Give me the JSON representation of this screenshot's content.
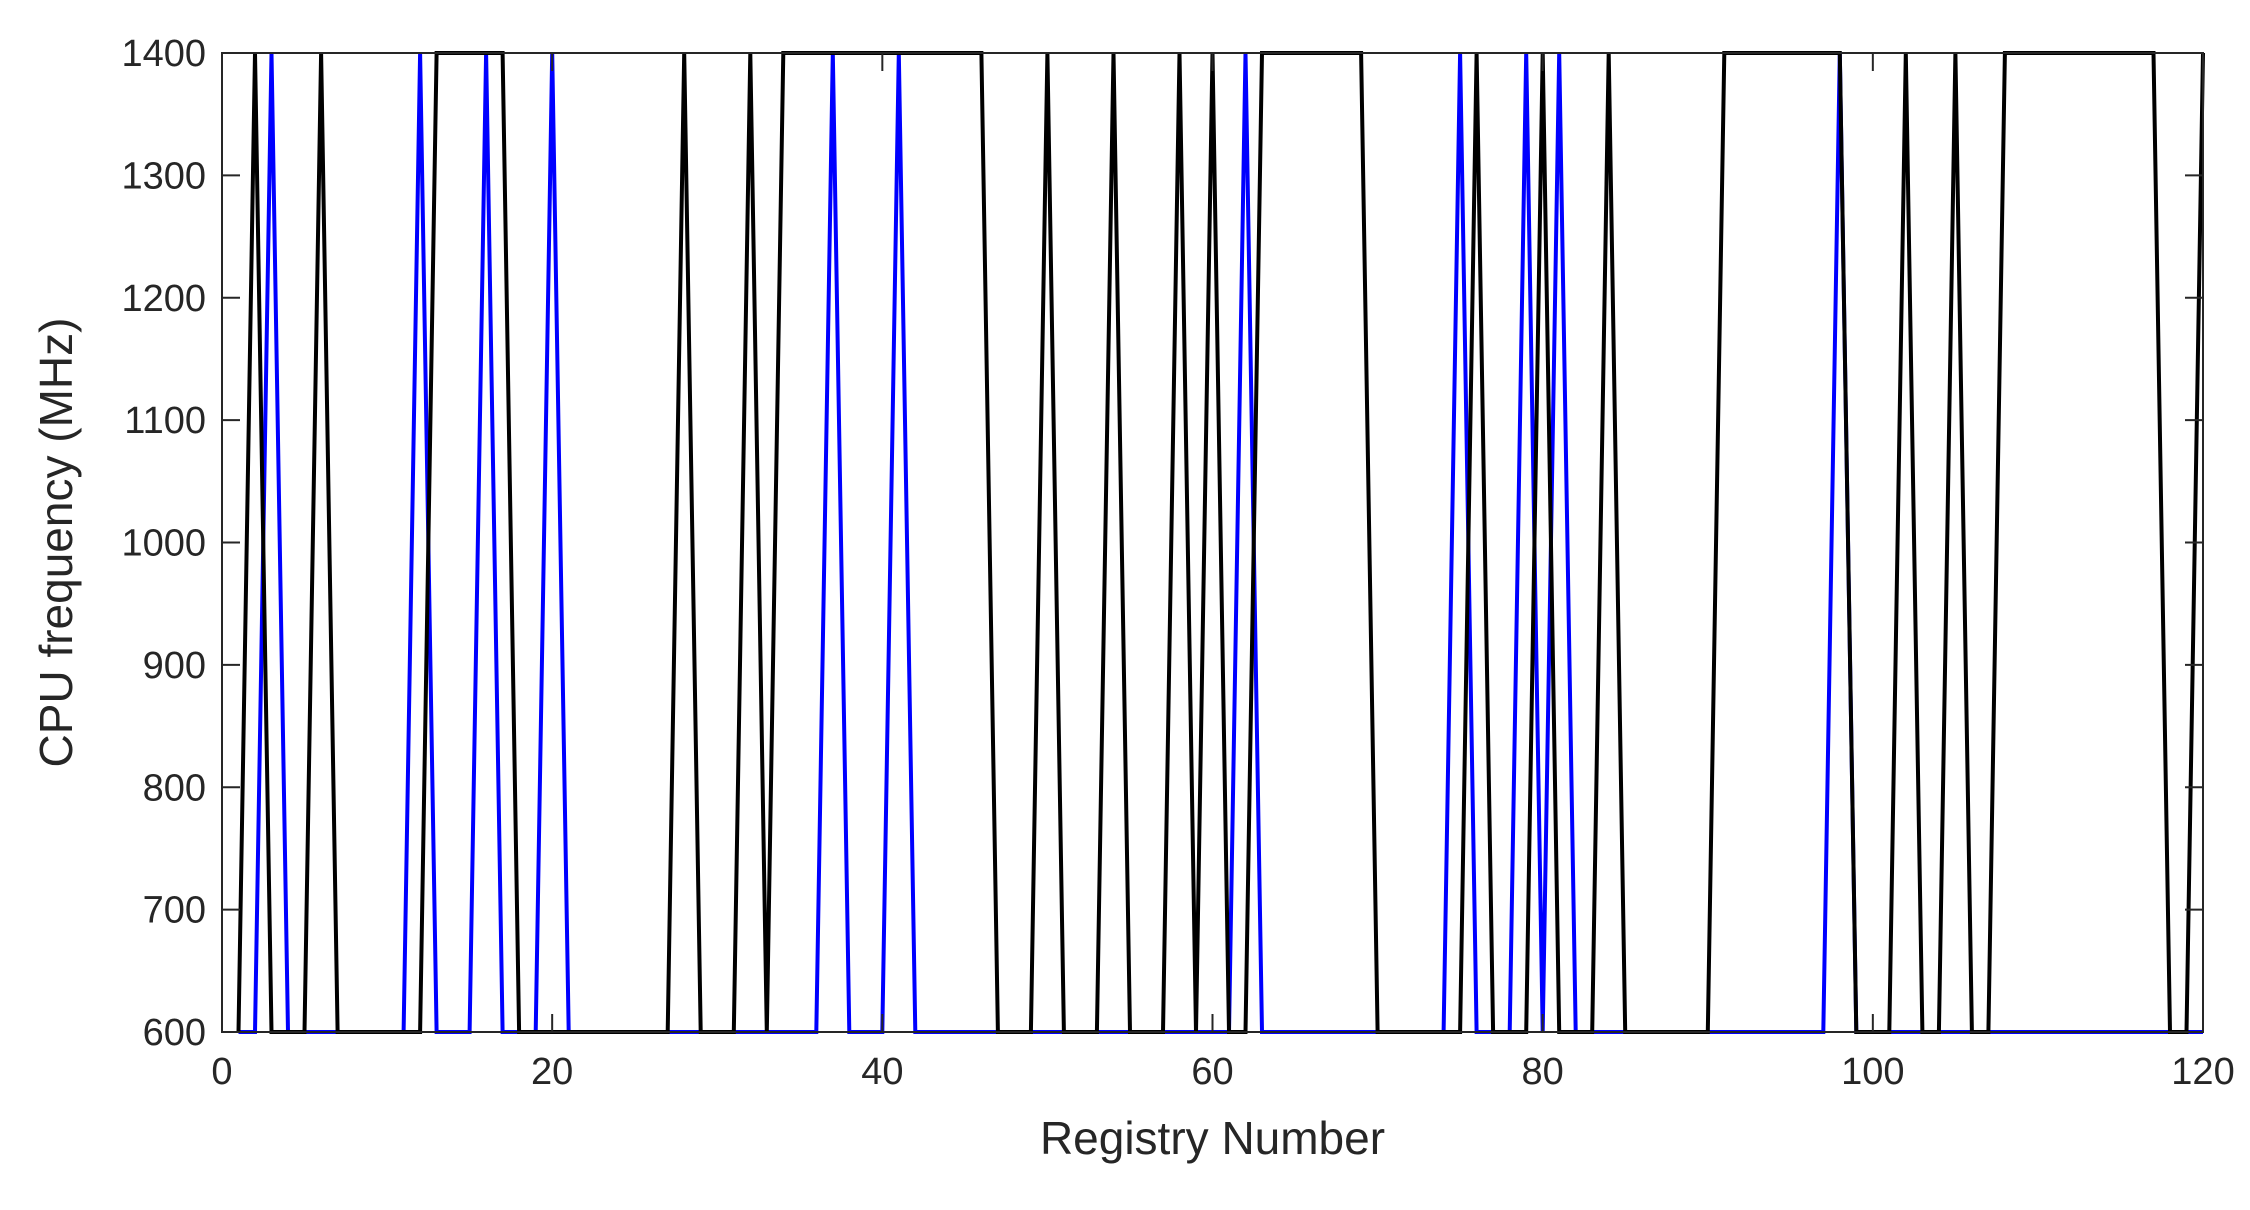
{
  "chart_data": {
    "type": "line",
    "title": "",
    "xlabel": "Registry Number",
    "ylabel": "CPU frequency (MHz)",
    "xlim": [
      0,
      120
    ],
    "ylim": [
      600,
      1400
    ],
    "xticks": [
      0,
      20,
      40,
      60,
      80,
      100,
      120
    ],
    "yticks": [
      600,
      700,
      800,
      900,
      1000,
      1100,
      1200,
      1300,
      1400
    ],
    "grid": false,
    "legend": "none",
    "series": [
      {
        "color": "#0000ff",
        "x": [
          1,
          2,
          3,
          4,
          11,
          12,
          13,
          15,
          16,
          17,
          19,
          20,
          21,
          36,
          37,
          38,
          40,
          41,
          42,
          61,
          62,
          63,
          74,
          75,
          76,
          78,
          79,
          80,
          81,
          82,
          97,
          98,
          99,
          120
        ],
        "y": [
          600,
          600,
          1400,
          600,
          600,
          1400,
          600,
          600,
          1400,
          600,
          600,
          1400,
          600,
          600,
          1400,
          600,
          600,
          1400,
          600,
          600,
          1400,
          600,
          600,
          1400,
          600,
          600,
          1400,
          600,
          1400,
          600,
          600,
          1400,
          600,
          600
        ]
      },
      {
        "color": "#000000",
        "x": [
          1,
          2,
          3,
          5,
          6,
          7,
          12,
          13,
          17,
          18,
          27,
          28,
          29,
          31,
          32,
          33,
          34,
          46,
          47,
          49,
          50,
          51,
          53,
          54,
          55,
          57,
          58,
          59,
          60,
          61,
          62,
          63,
          69,
          70,
          75,
          76,
          77,
          79,
          80,
          81,
          83,
          84,
          85,
          90,
          91,
          98,
          99,
          101,
          102,
          103,
          104,
          105,
          106,
          107,
          108,
          117,
          118,
          119,
          120
        ],
        "y": [
          600,
          1400,
          600,
          600,
          1400,
          600,
          600,
          1400,
          1400,
          600,
          600,
          1400,
          600,
          600,
          1400,
          600,
          1400,
          1400,
          600,
          600,
          1400,
          600,
          600,
          1400,
          600,
          600,
          1400,
          600,
          1400,
          600,
          600,
          1400,
          1400,
          600,
          600,
          1400,
          600,
          600,
          1400,
          600,
          600,
          1400,
          600,
          600,
          1400,
          1400,
          600,
          600,
          1400,
          600,
          600,
          1400,
          600,
          600,
          1400,
          1400,
          600,
          600,
          1400
        ]
      }
    ]
  }
}
